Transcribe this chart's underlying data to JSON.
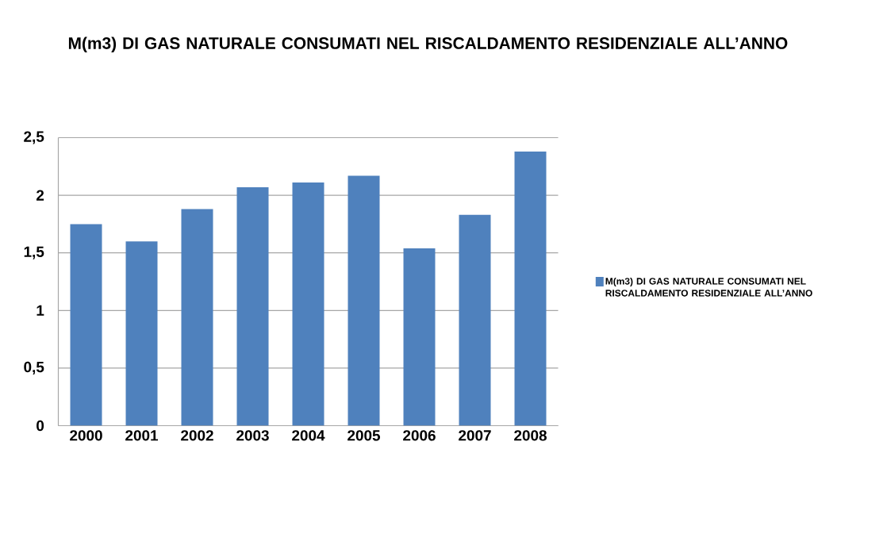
{
  "chart_data": {
    "type": "bar",
    "title": "M(m3) DI GAS NATURALE CONSUMATI NEL RISCALDAMENTO RESIDENZIALE ALL’ANNO",
    "categories": [
      "2000",
      "2001",
      "2002",
      "2003",
      "2004",
      "2005",
      "2006",
      "2007",
      "2008"
    ],
    "series": [
      {
        "name": "M(m3) DI GAS NATURALE CONSUMATI NEL RISCALDAMENTO RESIDENZIALE ALL’ANNO",
        "color": "#4f81bd",
        "values": [
          1.75,
          1.6,
          1.88,
          2.07,
          2.11,
          2.17,
          1.54,
          1.83,
          2.38
        ]
      }
    ],
    "ylim": [
      0,
      2.5
    ],
    "yticks": [
      {
        "value": 0,
        "label": "0"
      },
      {
        "value": 0.5,
        "label": "0,5"
      },
      {
        "value": 1,
        "label": "1"
      },
      {
        "value": 1.5,
        "label": "1,5"
      },
      {
        "value": 2,
        "label": "2"
      },
      {
        "value": 2.5,
        "label": "2,5"
      }
    ],
    "grid": "y",
    "legend": "right"
  }
}
